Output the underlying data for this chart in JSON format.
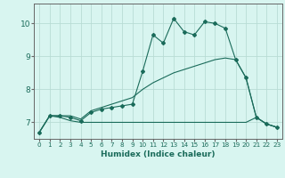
{
  "title": "",
  "xlabel": "Humidex (Indice chaleur)",
  "ylabel": "",
  "background_color": "#d8f5f0",
  "grid_color": "#b8dcd5",
  "line_color": "#1a6b5a",
  "spine_color": "#666666",
  "xlim": [
    -0.5,
    23.5
  ],
  "ylim": [
    6.5,
    10.6
  ],
  "yticks": [
    7,
    8,
    9,
    10
  ],
  "xticks": [
    0,
    1,
    2,
    3,
    4,
    5,
    6,
    7,
    8,
    9,
    10,
    11,
    12,
    13,
    14,
    15,
    16,
    17,
    18,
    19,
    20,
    21,
    22,
    23
  ],
  "main_line_x": [
    0,
    1,
    2,
    3,
    4,
    5,
    6,
    7,
    8,
    9,
    10,
    11,
    12,
    13,
    14,
    15,
    16,
    17,
    18,
    19,
    20,
    21,
    22,
    23
  ],
  "main_line_y": [
    6.7,
    7.2,
    7.2,
    7.15,
    7.05,
    7.3,
    7.4,
    7.45,
    7.5,
    7.55,
    8.55,
    9.65,
    9.4,
    10.15,
    9.75,
    9.65,
    10.05,
    10.0,
    9.85,
    8.9,
    8.35,
    7.15,
    6.95,
    6.85
  ],
  "upper_line_x": [
    0,
    1,
    2,
    3,
    4,
    5,
    6,
    7,
    8,
    9,
    10,
    11,
    12,
    13,
    14,
    15,
    16,
    17,
    18,
    19,
    20,
    21,
    22,
    23
  ],
  "upper_line_y": [
    6.7,
    7.2,
    7.2,
    7.2,
    7.1,
    7.35,
    7.45,
    7.55,
    7.65,
    7.75,
    8.0,
    8.2,
    8.35,
    8.5,
    8.6,
    8.7,
    8.8,
    8.9,
    8.95,
    8.9,
    8.35,
    7.15,
    6.95,
    6.85
  ],
  "lower_line_x": [
    0,
    1,
    2,
    3,
    4,
    5,
    6,
    7,
    8,
    9,
    10,
    11,
    12,
    13,
    14,
    15,
    16,
    17,
    18,
    19,
    20,
    21,
    22,
    23
  ],
  "lower_line_y": [
    6.7,
    7.2,
    7.15,
    7.05,
    7.0,
    7.0,
    7.0,
    7.0,
    7.0,
    7.0,
    7.0,
    7.0,
    7.0,
    7.0,
    7.0,
    7.0,
    7.0,
    7.0,
    7.0,
    7.0,
    7.0,
    7.15,
    6.95,
    6.85
  ],
  "xlabel_fontsize": 6.5,
  "tick_fontsize_x": 5.2,
  "tick_fontsize_y": 6.5
}
